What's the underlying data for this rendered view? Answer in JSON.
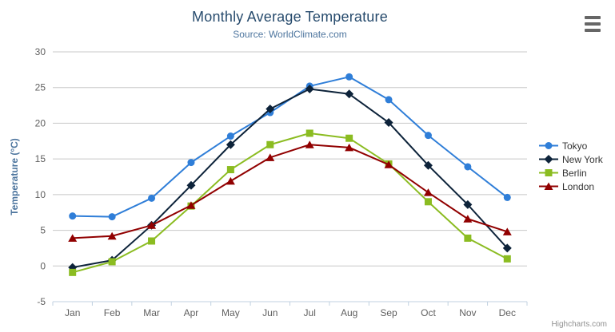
{
  "chart_data": {
    "type": "line",
    "title": "Monthly Average Temperature",
    "subtitle": "Source: WorldClimate.com",
    "categories": [
      "Jan",
      "Feb",
      "Mar",
      "Apr",
      "May",
      "Jun",
      "Jul",
      "Aug",
      "Sep",
      "Oct",
      "Nov",
      "Dec"
    ],
    "xlabel": "",
    "ylabel": "Temperature (°C)",
    "ylim": [
      -5,
      30
    ],
    "ytick_step": 5,
    "ytick_labels": [
      "-5",
      "0",
      "5",
      "10",
      "15",
      "20",
      "25",
      "30"
    ],
    "grid": true,
    "legend_position": "right",
    "series": [
      {
        "name": "Tokyo",
        "color": "#2f7ed8",
        "marker": "circle",
        "values": [
          7.0,
          6.9,
          9.5,
          14.5,
          18.2,
          21.5,
          25.2,
          26.5,
          23.3,
          18.3,
          13.9,
          9.6
        ]
      },
      {
        "name": "New York",
        "color": "#0d233a",
        "marker": "diamond",
        "values": [
          -0.2,
          0.8,
          5.7,
          11.3,
          17.0,
          22.0,
          24.8,
          24.1,
          20.1,
          14.1,
          8.6,
          2.5
        ]
      },
      {
        "name": "Berlin",
        "color": "#8bbc21",
        "marker": "square",
        "values": [
          -0.9,
          0.6,
          3.5,
          8.4,
          13.5,
          17.0,
          18.6,
          17.9,
          14.3,
          9.0,
          3.9,
          1.0
        ]
      },
      {
        "name": "London",
        "color": "#910000",
        "marker": "triangle",
        "values": [
          3.9,
          4.2,
          5.7,
          8.5,
          11.9,
          15.2,
          17.0,
          16.6,
          14.2,
          10.3,
          6.6,
          4.8
        ]
      }
    ]
  },
  "colors": {
    "title": "#274b6d",
    "subtitle": "#4d759e",
    "axis_title": "#4d759e",
    "axis_label": "#606060",
    "grid_line": "#c8c8c8",
    "x_axis_line": "#c0d0e0",
    "legend_text": "#333333",
    "credits": "#909090",
    "menu_icon": "#666666"
  },
  "export_menu": {
    "icon": "hamburger-menu"
  },
  "credits": {
    "label": "Highcharts.com"
  }
}
